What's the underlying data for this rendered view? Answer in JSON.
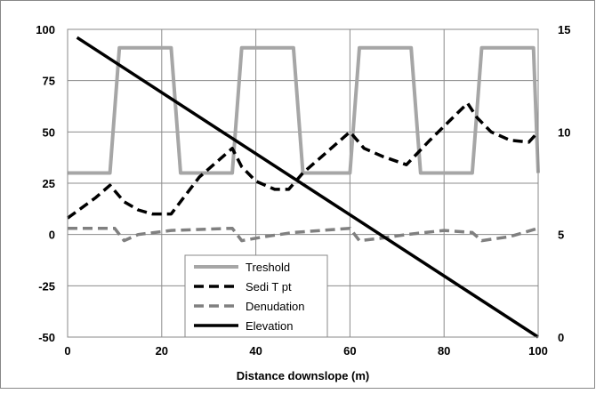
{
  "chart_data": {
    "type": "line",
    "xlabel": "Distance downslope (m)",
    "x_ticks": [
      "0",
      "20",
      "40",
      "60",
      "80",
      "100"
    ],
    "y_left_ticks": [
      "100",
      "75",
      "50",
      "25",
      "0",
      "-25",
      "-50"
    ],
    "y_right_ticks": [
      "15",
      "10",
      "5",
      "0"
    ],
    "xlim": [
      0,
      100
    ],
    "ylim": [
      -50,
      100
    ],
    "y2lim": [
      0,
      15
    ],
    "grid": true,
    "legend_position": "lower-left inside",
    "series": [
      {
        "name": "Treshold",
        "axis": "left",
        "style": "solid",
        "color": "#a6a6a6",
        "x": [
          0,
          9,
          11,
          22,
          24,
          35,
          37,
          48,
          50,
          60,
          62,
          73,
          75,
          86,
          88,
          99,
          100
        ],
        "y": [
          30,
          30,
          91,
          91,
          30,
          30,
          91,
          91,
          30,
          30,
          91,
          91,
          30,
          30,
          91,
          91,
          30
        ]
      },
      {
        "name": "Sedi T pt",
        "axis": "left",
        "style": "dashed",
        "color": "#000000",
        "x": [
          0,
          3,
          6,
          9,
          12,
          15,
          18,
          22,
          28,
          35,
          37,
          40,
          44,
          47,
          50,
          55,
          60,
          63,
          67,
          72,
          77,
          81,
          85,
          87,
          90,
          94,
          98,
          100
        ],
        "y": [
          8,
          13,
          18,
          24,
          16,
          12,
          10,
          10,
          28,
          42,
          33,
          26,
          22,
          22,
          30,
          40,
          50,
          42,
          38,
          34,
          46,
          55,
          64,
          57,
          50,
          46,
          45,
          50
        ]
      },
      {
        "name": "Denudation",
        "axis": "left",
        "style": "dashed",
        "color": "#808080",
        "x": [
          0,
          10,
          12,
          15,
          22,
          35,
          37,
          42,
          48,
          60,
          62,
          66,
          72,
          80,
          86,
          88,
          94,
          100
        ],
        "y": [
          3,
          3,
          -3,
          0,
          2,
          3,
          -3,
          -1,
          1,
          3,
          -3,
          -2,
          0,
          2,
          1,
          -3,
          -1,
          3
        ]
      },
      {
        "name": "Elevation",
        "axis": "right",
        "style": "solid",
        "color": "#000000",
        "x": [
          2,
          100
        ],
        "y": [
          14.6,
          0
        ]
      }
    ]
  }
}
